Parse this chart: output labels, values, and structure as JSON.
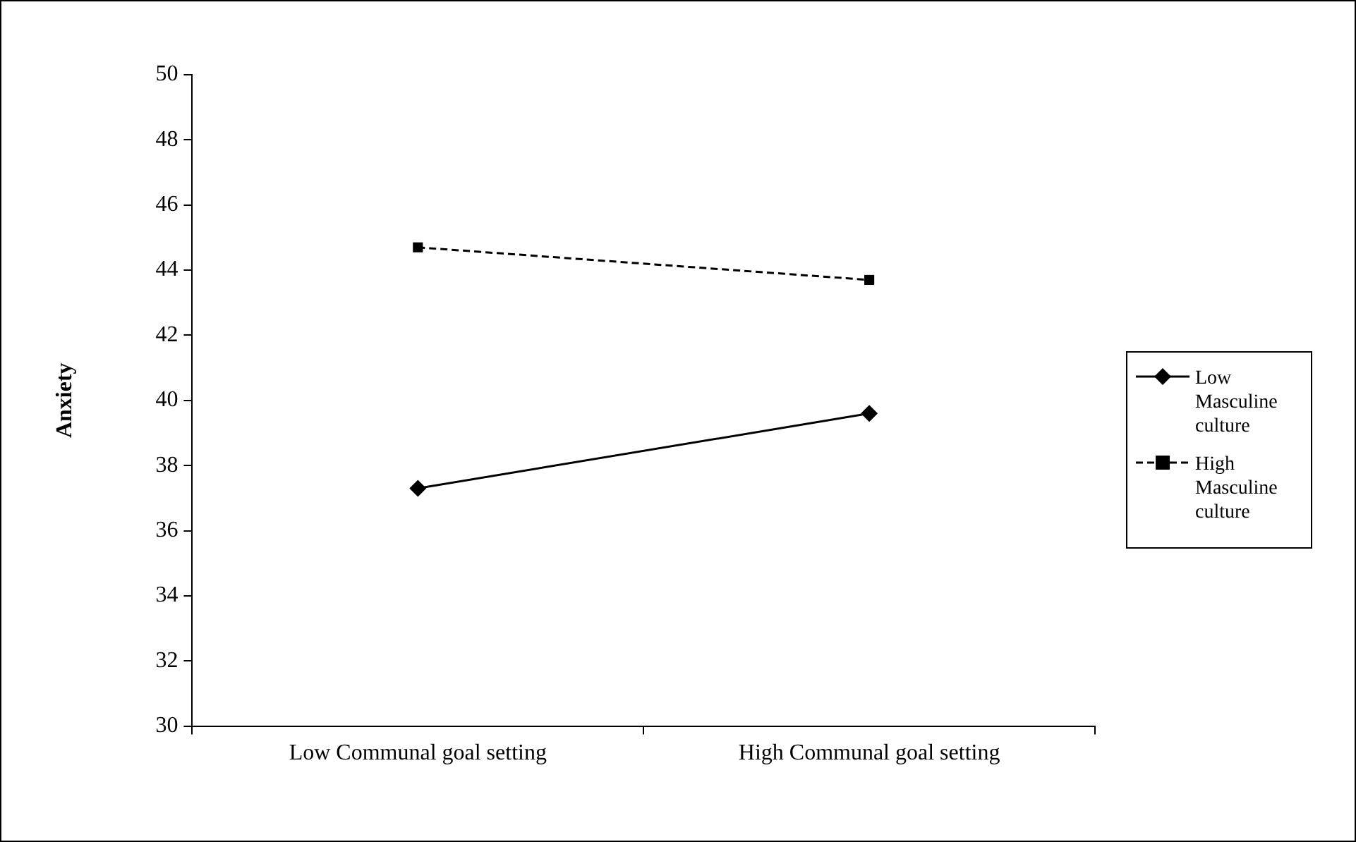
{
  "chart_data": {
    "type": "line",
    "ylabel": "Anxiety",
    "categories": [
      "Low Communal goal setting",
      "High Communal goal setting"
    ],
    "series": [
      {
        "name": "Low Masculine culture",
        "color": "#000000",
        "values": [
          37.3,
          39.6
        ],
        "marker": "diamond",
        "line_style": "solid"
      },
      {
        "name": "High Masculine culture",
        "color": "#000000",
        "values": [
          44.7,
          43.7
        ],
        "marker": "square",
        "line_style": "dashed"
      }
    ],
    "ylim": [
      30,
      50
    ],
    "yticks": [
      30,
      32,
      34,
      36,
      38,
      40,
      42,
      44,
      46,
      48,
      50
    ],
    "grid": false,
    "legend": "right"
  }
}
